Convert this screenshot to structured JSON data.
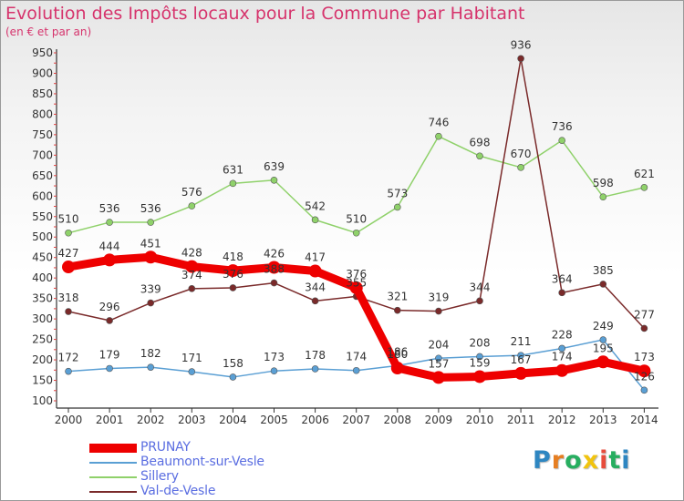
{
  "header": {
    "title": "Evolution des Impôts locaux pour la Commune par Habitant",
    "subtitle": "(en € et par an)"
  },
  "logo": {
    "text": "Proxiti",
    "colors": [
      "#2e86c1",
      "#e67e22",
      "#27ae60",
      "#f1c40f",
      "#e74c3c",
      "#27ae60",
      "#2e86c1"
    ]
  },
  "chart_data": {
    "type": "line",
    "title": "Evolution des Impôts locaux pour la Commune par Habitant",
    "subtitle": "(en € et par an)",
    "xlabel": "",
    "ylabel": "",
    "categories": [
      "2000",
      "2001",
      "2002",
      "2003",
      "2004",
      "2005",
      "2006",
      "2007",
      "2008",
      "2009",
      "2010",
      "2011",
      "2012",
      "2013",
      "2014"
    ],
    "ylim": [
      100,
      950
    ],
    "yticks": [
      100,
      150,
      200,
      250,
      300,
      350,
      400,
      450,
      500,
      550,
      600,
      650,
      700,
      750,
      800,
      850,
      900,
      950
    ],
    "grid": false,
    "legend_position": "bottom-left",
    "series": [
      {
        "name": "PRUNAY",
        "color": "#ee0000",
        "values": [
          427,
          444,
          451,
          428,
          418,
          426,
          417,
          376,
          180,
          157,
          159,
          167,
          174,
          195,
          173
        ],
        "labels": [
          "427",
          "444",
          "451",
          "428",
          "418",
          "426",
          "417",
          "376",
          "180",
          "157",
          "159",
          "167",
          "174",
          "195",
          "173"
        ]
      },
      {
        "name": "Beaumont-sur-Vesle",
        "color": "#5a9fd4",
        "values": [
          172,
          179,
          182,
          171,
          158,
          173,
          178,
          174,
          186,
          204,
          208,
          211,
          228,
          249,
          126
        ],
        "labels": [
          "172",
          "179",
          "182",
          "171",
          "158",
          "173",
          "178",
          "174",
          "186",
          "204",
          "208",
          "211",
          "228",
          "249",
          "126"
        ]
      },
      {
        "name": "Sillery",
        "color": "#8fd16a",
        "values": [
          510,
          536,
          536,
          576,
          631,
          639,
          542,
          510,
          573,
          746,
          698,
          670,
          736,
          598,
          621
        ],
        "labels": [
          "510",
          "536",
          "536",
          "576",
          "631",
          "639",
          "542",
          "510",
          "573",
          "746",
          "698",
          "670",
          "736",
          "598",
          "621"
        ]
      },
      {
        "name": "Val-de-Vesle",
        "color": "#7a2a2a",
        "values": [
          318,
          296,
          339,
          374,
          376,
          388,
          344,
          355,
          321,
          319,
          344,
          936,
          364,
          385,
          277
        ],
        "labels": [
          "318",
          "296",
          "339",
          "374",
          "376",
          "388",
          "344",
          "355",
          "321",
          "319",
          "344",
          "936",
          "364",
          "385",
          "277"
        ]
      }
    ]
  }
}
